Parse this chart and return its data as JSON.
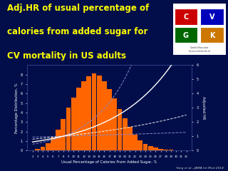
{
  "background_color": "#020e4a",
  "title_line1": "Adj.HR of usual percentage of",
  "title_line2": "calories from added sugar for",
  "title_line3": "CV mortality in US adults",
  "title_color": "#ffff00",
  "title_fontsize": 8.5,
  "xlabel": "Usual Percentage of Calories From Added Sugar, %",
  "ylabel_left": "Percentage Distribution, %",
  "ylabel_right": "Adjusted HR",
  "label_color": "#ffffff",
  "citation": "Yang et al., JAMA Int Med 2014",
  "citation_color": "#cccccc",
  "bar_color": "#ff6600",
  "bar_x": [
    2,
    3,
    4,
    5,
    6,
    7,
    8,
    9,
    10,
    11,
    12,
    13,
    14,
    15,
    16,
    17,
    18,
    19,
    20,
    21,
    22,
    23,
    24,
    25,
    26,
    27,
    28,
    29,
    30,
    31,
    32
  ],
  "bar_heights": [
    0.05,
    0.15,
    0.4,
    0.8,
    1.4,
    2.2,
    3.3,
    4.5,
    5.6,
    6.6,
    7.3,
    7.8,
    8.1,
    7.9,
    7.3,
    6.5,
    5.5,
    4.4,
    3.4,
    2.5,
    1.7,
    1.1,
    0.7,
    0.45,
    0.28,
    0.18,
    0.12,
    0.08,
    0.05,
    0.03,
    0.01
  ],
  "ylim_left": [
    0,
    9
  ],
  "ylim_right": [
    0,
    6
  ],
  "xlim": [
    1,
    33
  ],
  "logo_box_color": "#ffffff",
  "logo_C_color": "#cc0000",
  "logo_V_color": "#0000bb",
  "logo_G_color": "#006600",
  "logo_K_color": "#cc7700"
}
